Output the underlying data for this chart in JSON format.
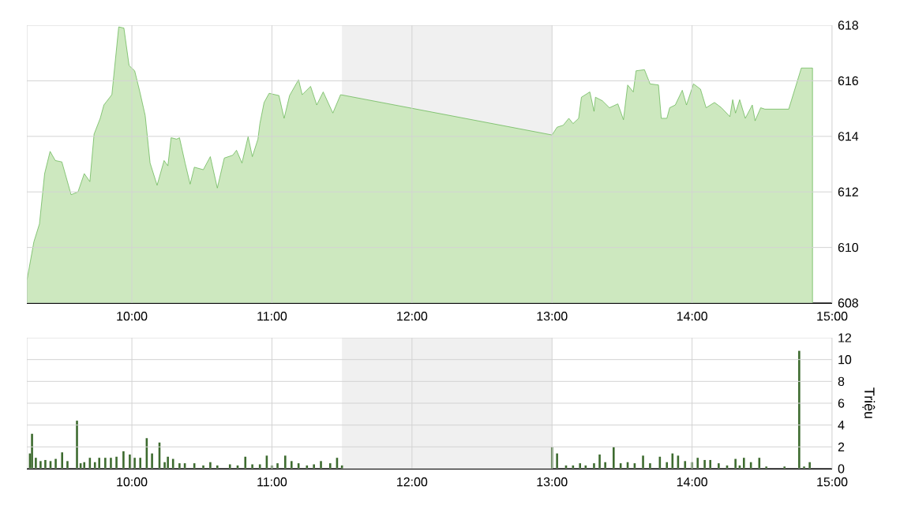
{
  "chart_data": [
    {
      "type": "area",
      "xlim": [
        9.25,
        15
      ],
      "ylim": [
        608,
        618
      ],
      "xticks": [
        {
          "value": 10,
          "label": "10:00"
        },
        {
          "value": 11,
          "label": "11:00"
        },
        {
          "value": 12,
          "label": "12:00"
        },
        {
          "value": 13,
          "label": "13:00"
        },
        {
          "value": 14,
          "label": "14:00"
        },
        {
          "value": 15,
          "label": "15:00"
        }
      ],
      "yticks": [
        608,
        610,
        612,
        614,
        616,
        618
      ],
      "grid": true,
      "bands": [
        {
          "axis": "x",
          "from": 11.5,
          "to": 13,
          "color": "#f0f0f0"
        }
      ],
      "series": [
        {
          "color": "#cde8bf",
          "x": [
            9.25,
            9.3,
            9.34,
            9.377,
            9.416,
            9.453,
            9.5,
            9.566,
            9.615,
            9.66,
            9.7,
            9.73,
            9.774,
            9.8,
            9.857,
            9.906,
            9.943,
            9.98,
            10.02,
            10.057,
            10.095,
            10.13,
            10.18,
            10.23,
            10.257,
            10.28,
            10.32,
            10.34,
            10.38,
            10.416,
            10.446,
            10.51,
            10.56,
            10.61,
            10.66,
            10.72,
            10.747,
            10.786,
            10.83,
            10.86,
            10.9,
            10.914,
            10.944,
            10.98,
            11.05,
            11.087,
            11.126,
            11.19,
            11.216,
            11.276,
            11.32,
            11.366,
            11.435,
            11.49,
            13.0,
            13.036,
            13.08,
            13.12,
            13.15,
            13.19,
            13.21,
            13.27,
            13.3,
            13.31,
            13.36,
            13.41,
            13.47,
            13.51,
            13.54,
            13.58,
            13.6,
            13.66,
            13.7,
            13.76,
            13.78,
            13.82,
            13.84,
            13.88,
            13.93,
            13.96,
            14.01,
            14.06,
            14.1,
            14.16,
            14.21,
            14.27,
            14.29,
            14.31,
            14.34,
            14.38,
            14.43,
            14.45,
            14.49,
            14.52,
            14.69,
            14.78,
            14.86
          ],
          "values": [
            608.8,
            610.2,
            610.85,
            612.66,
            613.46,
            613.13,
            613.08,
            611.9,
            612.0,
            612.66,
            612.37,
            614.08,
            614.65,
            615.13,
            615.5,
            617.94,
            617.9,
            616.55,
            616.36,
            615.6,
            614.75,
            613.04,
            612.24,
            613.13,
            612.94,
            613.95,
            613.9,
            613.95,
            613.04,
            612.28,
            612.89,
            612.8,
            613.27,
            612.14,
            613.22,
            613.32,
            613.5,
            613.04,
            613.99,
            613.27,
            613.9,
            614.46,
            615.22,
            615.55,
            615.47,
            614.65,
            615.47,
            616.04,
            615.5,
            615.8,
            615.13,
            615.6,
            614.84,
            615.5,
            614.05,
            614.33,
            614.4,
            614.65,
            614.46,
            614.65,
            615.41,
            615.6,
            614.9,
            615.41,
            615.28,
            615.03,
            615.17,
            614.6,
            615.85,
            615.6,
            616.36,
            616.4,
            615.89,
            615.85,
            614.65,
            614.65,
            615.03,
            615.13,
            615.66,
            615.13,
            615.89,
            615.7,
            615.03,
            615.22,
            615.03,
            614.71,
            615.32,
            614.84,
            615.32,
            614.65,
            615.13,
            614.56,
            615.03,
            614.98,
            614.98,
            616.46,
            616.46
          ]
        }
      ]
    },
    {
      "type": "bar",
      "xlim": [
        9.25,
        15
      ],
      "ylim": [
        0,
        12
      ],
      "ylabel": "Triệu",
      "xticks": [
        {
          "value": 10,
          "label": "10:00"
        },
        {
          "value": 11,
          "label": "11:00"
        },
        {
          "value": 12,
          "label": "12:00"
        },
        {
          "value": 13,
          "label": "13:00"
        },
        {
          "value": 14,
          "label": "14:00"
        },
        {
          "value": 15,
          "label": "15:00"
        }
      ],
      "yticks": [
        0,
        2,
        4,
        6,
        8,
        10,
        12
      ],
      "grid": true,
      "bands": [
        {
          "axis": "x",
          "from": 11.5,
          "to": 13,
          "color": "#f0f0f0"
        }
      ],
      "series": [
        {
          "color": "#3d6b2f",
          "x": [
            9.272,
            9.287,
            9.314,
            9.348,
            9.382,
            9.419,
            9.456,
            9.502,
            9.54,
            9.608,
            9.634,
            9.66,
            9.7,
            9.736,
            9.767,
            9.81,
            9.85,
            9.89,
            9.94,
            9.985,
            10.02,
            10.06,
            10.106,
            10.144,
            10.197,
            10.234,
            10.257,
            10.294,
            10.34,
            10.378,
            10.446,
            10.51,
            10.56,
            10.61,
            10.7,
            10.755,
            10.81,
            10.86,
            10.914,
            10.963,
            11.0,
            11.04,
            11.095,
            11.14,
            11.19,
            11.25,
            11.3,
            11.35,
            11.416,
            11.465,
            11.5,
            13.0,
            13.036,
            13.1,
            13.15,
            13.2,
            13.24,
            13.3,
            13.34,
            13.38,
            13.44,
            13.49,
            13.54,
            13.59,
            13.65,
            13.7,
            13.77,
            13.82,
            13.86,
            13.9,
            13.95,
            14.0,
            14.04,
            14.09,
            14.13,
            14.19,
            14.25,
            14.31,
            14.34,
            14.37,
            14.42,
            14.48,
            14.53,
            14.66,
            14.765,
            14.8,
            14.84
          ],
          "values": [
            1.4,
            3.2,
            1.0,
            0.7,
            0.8,
            0.7,
            0.9,
            1.5,
            0.7,
            4.4,
            0.5,
            0.6,
            1.0,
            0.6,
            1.0,
            1.0,
            1.0,
            1.1,
            1.6,
            1.3,
            1.0,
            1.0,
            2.8,
            1.4,
            2.4,
            0.6,
            1.1,
            0.9,
            0.5,
            0.5,
            0.5,
            0.3,
            0.6,
            0.3,
            0.4,
            0.3,
            1.1,
            0.4,
            0.4,
            1.2,
            0.3,
            0.5,
            1.2,
            0.7,
            0.5,
            0.3,
            0.4,
            0.7,
            0.5,
            1.0,
            0.3,
            2.0,
            1.4,
            0.3,
            0.3,
            0.5,
            0.3,
            0.5,
            1.3,
            0.6,
            2.0,
            0.5,
            0.6,
            0.5,
            1.2,
            0.5,
            1.1,
            0.6,
            1.4,
            1.2,
            0.7,
            0.6,
            1.0,
            0.8,
            0.8,
            0.5,
            0.3,
            0.9,
            0.3,
            1.0,
            0.6,
            1.0,
            0.2,
            0.2,
            10.8,
            0.2,
            0.6
          ]
        }
      ]
    }
  ]
}
